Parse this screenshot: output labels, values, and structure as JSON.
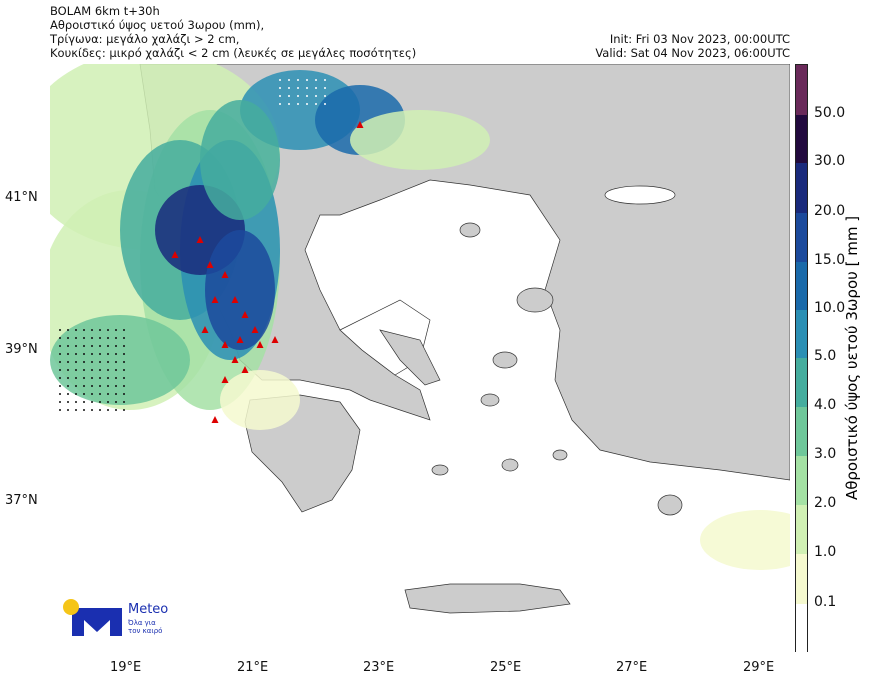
{
  "title": {
    "line1": "BOLAM 6km t+30h",
    "line2": "Αθροιστικό ύψος υετού 3ωρου (mm),",
    "line3": "Τρίγωνα: μεγάλο χαλάζι > 2 cm,",
    "line4": "Κουκίδες: μικρό χαλάζι < 2 cm (λευκές σε μεγάλες ποσότητες)"
  },
  "init": "Init: Fri 03 Nov 2023, 00:00UTC",
  "valid": "Valid: Sat 04 Nov 2023, 06:00UTC",
  "lon_ticks": [
    "19°E",
    "21°E",
    "23°E",
    "25°E",
    "27°E",
    "29°E"
  ],
  "lat_ticks": [
    "41°N",
    "39°N",
    "37°N"
  ],
  "colorbar": {
    "title": "Αθροιστικό ύψος υετού 3ωρου [ mm ]",
    "labels": [
      "0.1",
      "1.0",
      "2.0",
      "3.0",
      "4.0",
      "5.0",
      "10.0",
      "15.0",
      "20.0",
      "30.0",
      "50.0"
    ],
    "colors": [
      "#ffffff",
      "#f5f9cf",
      "#d0f0b4",
      "#a4e1a4",
      "#6fc79a",
      "#45ad9e",
      "#2b8fb4",
      "#1a6aaa",
      "#1c4a9c",
      "#1a2a7c",
      "#220a3e",
      "#6a2a5a"
    ]
  },
  "land_color": "#cccccc",
  "hail_triangle_color": "#dd0000",
  "logo": {
    "name": "Meteo",
    "tagline1": "Όλα για",
    "tagline2": "τον καιρό",
    "brand_color": "#1a2fb0",
    "sun_color": "#f5c518"
  }
}
